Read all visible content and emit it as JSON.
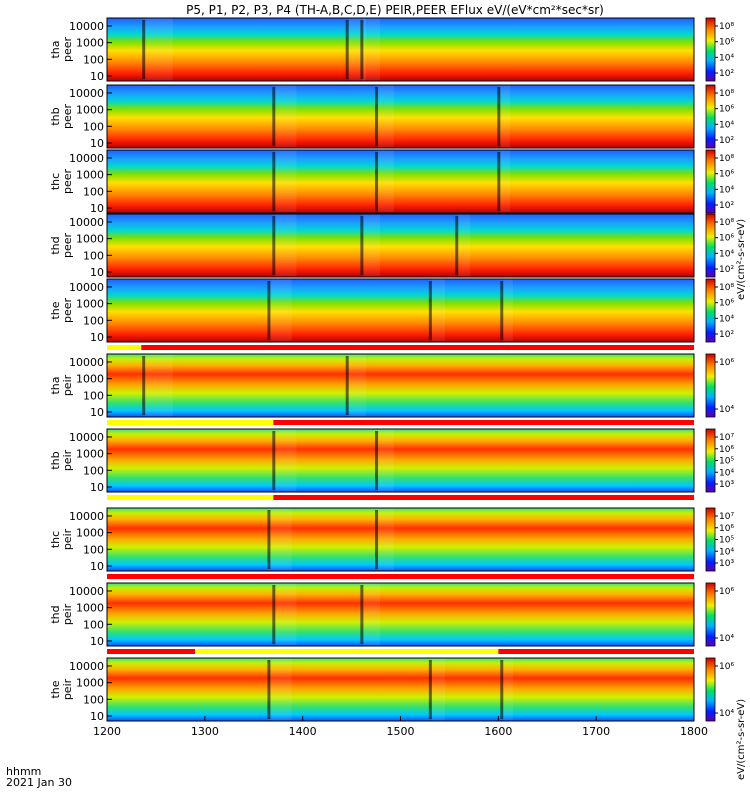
{
  "title": "P5, P1, P2, P3, P4 (TH-A,B,C,D,E) PEIR,PEER EFlux eV/(eV*cm²*sec*sr)",
  "colorbar_label_electron": "eV/(cm²-s-sr-eV)",
  "colorbar_label_ion": "eV/(cm²-s-sr-eV)",
  "footer": {
    "time_format": "hhmm",
    "date": "2021 Jan 30"
  },
  "chart_data": {
    "type": "heatmap",
    "xlabel": "",
    "xlim": [
      1200,
      1800
    ],
    "x_ticks": [
      "1200",
      "1300",
      "1400",
      "1500",
      "1600",
      "1700",
      "1800"
    ],
    "y_scale": "log",
    "ylim": [
      5,
      30000
    ],
    "y_ticks": [
      "10",
      "100",
      "1000",
      "10000"
    ],
    "panels": [
      {
        "probe": "tha",
        "species": "peer",
        "label": "tha\npeer",
        "cbar_ticks": [
          "10⁸",
          "10⁶",
          "10⁴",
          "10²"
        ],
        "transitions": [
          1237,
          1445,
          1460
        ]
      },
      {
        "probe": "thb",
        "species": "peer",
        "label": "thb\npeer",
        "cbar_ticks": [
          "10⁸",
          "10⁶",
          "10⁴",
          "10²"
        ],
        "transitions": [
          1370,
          1475,
          1600
        ]
      },
      {
        "probe": "thc",
        "species": "peer",
        "label": "thc\npeer",
        "cbar_ticks": [
          "10⁸",
          "10⁶",
          "10⁴",
          "10²"
        ],
        "transitions": [
          1370,
          1475,
          1600
        ]
      },
      {
        "probe": "thd",
        "species": "peer",
        "label": "thd\npeer",
        "cbar_ticks": [
          "10⁸",
          "10⁶",
          "10⁴",
          "10²"
        ],
        "transitions": [
          1370,
          1460,
          1557
        ]
      },
      {
        "probe": "the",
        "species": "peer",
        "label": "the\npeer",
        "cbar_ticks": [
          "10⁸",
          "10⁶",
          "10⁴",
          "10²"
        ],
        "transitions": [
          1365,
          1530,
          1603
        ]
      },
      {
        "probe": "tha",
        "species": "peir",
        "label": "tha\npeir",
        "cbar_ticks": [
          "10⁶",
          "10⁴"
        ],
        "transitions": [
          1237,
          1445
        ]
      },
      {
        "probe": "thb",
        "species": "peir",
        "label": "thb\npeir",
        "cbar_ticks": [
          "10⁷",
          "10⁶",
          "10⁵",
          "10⁴",
          "10³"
        ],
        "transitions": [
          1370,
          1475
        ]
      },
      {
        "probe": "thc",
        "species": "peir",
        "label": "thc\npeir",
        "cbar_ticks": [
          "10⁷",
          "10⁶",
          "10⁵",
          "10⁴",
          "10³"
        ],
        "transitions": [
          1365,
          1475
        ]
      },
      {
        "probe": "thd",
        "species": "peir",
        "label": "thd\npeir",
        "cbar_ticks": [
          "10⁶",
          "10⁴"
        ],
        "transitions": [
          1370,
          1460
        ]
      },
      {
        "probe": "the",
        "species": "peir",
        "label": "the\npeir",
        "cbar_ticks": [
          "10⁶",
          "10⁴"
        ],
        "transitions": [
          1365,
          1530,
          1603
        ]
      }
    ],
    "mode_bars": [
      {
        "after_panel": 4,
        "segments": [
          {
            "from": 1200,
            "to": 1235,
            "color": "#ffff00"
          },
          {
            "from": 1235,
            "to": 1800,
            "color": "#ff0000"
          }
        ]
      },
      {
        "after_panel": 5,
        "segments": [
          {
            "from": 1200,
            "to": 1370,
            "color": "#ffff00"
          },
          {
            "from": 1370,
            "to": 1800,
            "color": "#ff0000"
          }
        ]
      },
      {
        "after_panel": 6,
        "segments": [
          {
            "from": 1200,
            "to": 1370,
            "color": "#ffff00"
          },
          {
            "from": 1370,
            "to": 1800,
            "color": "#ff0000"
          }
        ]
      },
      {
        "after_panel": 7,
        "segments": [
          {
            "from": 1200,
            "to": 1800,
            "color": "#ff0000"
          }
        ]
      },
      {
        "after_panel": 8,
        "segments": [
          {
            "from": 1200,
            "to": 1290,
            "color": "#ff0000"
          },
          {
            "from": 1290,
            "to": 1600,
            "color": "#ffff00"
          },
          {
            "from": 1600,
            "to": 1800,
            "color": "#ff0000"
          }
        ]
      }
    ]
  }
}
